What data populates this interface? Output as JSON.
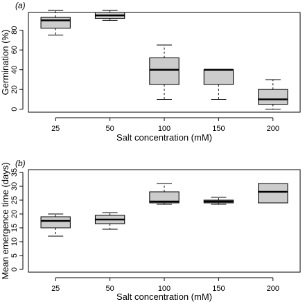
{
  "colors": {
    "box_fill": "#cccccc",
    "stroke": "#000000",
    "background": "#ffffff"
  },
  "chart_data": [
    {
      "type": "box",
      "panel_label": "(a)",
      "xlabel": "Salt concentration (mM)",
      "ylabel": "Germination (%)",
      "categories": [
        "25",
        "50",
        "100",
        "150",
        "200"
      ],
      "ylim": [
        -3,
        98
      ],
      "yticks": [
        0,
        20,
        40,
        60,
        80
      ],
      "grid": false,
      "boxes": [
        {
          "min": 75,
          "q1": 82,
          "median": 90,
          "q3": 93,
          "max": 100
        },
        {
          "min": 90,
          "q1": 92,
          "median": 95,
          "q3": 98,
          "max": 100
        },
        {
          "min": 10,
          "q1": 25,
          "median": 40,
          "q3": 52,
          "max": 65
        },
        {
          "min": 10,
          "q1": 25,
          "median": 40,
          "q3": 40,
          "max": 40
        },
        {
          "min": 0,
          "q1": 5,
          "median": 10,
          "q3": 20,
          "max": 30
        }
      ]
    },
    {
      "type": "box",
      "panel_label": "(b)",
      "xlabel": "Salt concentration (mM)",
      "ylabel": "Mean emergence time (days)",
      "categories": [
        "25",
        "50",
        "100",
        "150",
        "200"
      ],
      "ylim": [
        -1,
        36
      ],
      "yticks": [
        0,
        5,
        10,
        15,
        20,
        25,
        30,
        35
      ],
      "grid": false,
      "boxes": [
        {
          "min": 12,
          "q1": 15,
          "median": 17.5,
          "q3": 19,
          "max": 20
        },
        {
          "min": 14.5,
          "q1": 16.5,
          "median": 18,
          "q3": 19.5,
          "max": 20.5
        },
        {
          "min": 23.5,
          "q1": 24,
          "median": 24.5,
          "q3": 28,
          "max": 31
        },
        {
          "min": 23.5,
          "q1": 24,
          "median": 24.5,
          "q3": 25,
          "max": 26
        },
        {
          "min": 24,
          "q1": 24,
          "median": 28,
          "q3": 31,
          "max": 31
        }
      ]
    }
  ]
}
